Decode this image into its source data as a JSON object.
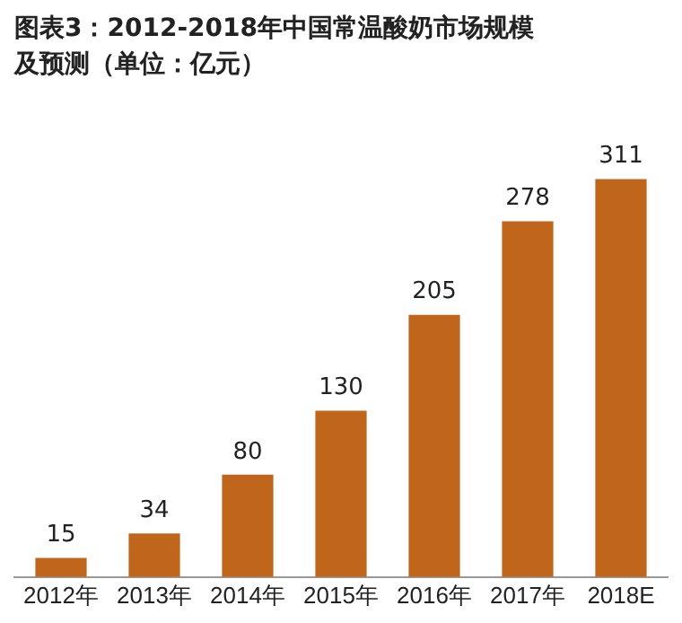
{
  "chart_data": {
    "type": "bar",
    "title": "图表3：2012-2018年中国常温酸奶市场规模及预测（单位：亿元）",
    "categories": [
      "2012年",
      "2013年",
      "2014年",
      "2015年",
      "2016年",
      "2017年",
      "2018E"
    ],
    "values": [
      15,
      34,
      80,
      130,
      205,
      278,
      311
    ],
    "color": "#c0651c",
    "data_labels": true,
    "grid": false,
    "tick_labels": "x"
  }
}
